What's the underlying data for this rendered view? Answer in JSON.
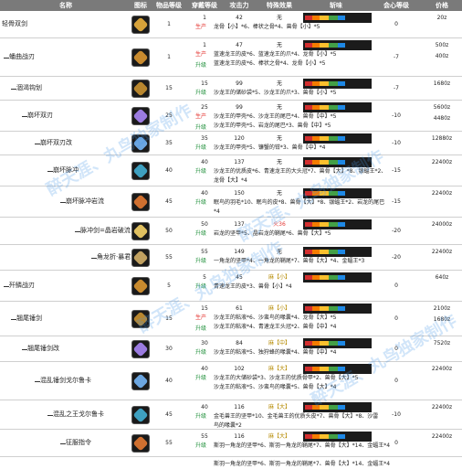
{
  "columns": [
    "名称",
    "图标",
    "物品等级",
    "穿戴等级",
    "攻击力",
    "特殊效果",
    "斩味",
    "会心等级",
    "价格"
  ],
  "watermarks": [
    "醉天涯、丸鸟独家制作",
    "醉天涯、丸鸟独家制作",
    "醉天涯、丸鸟独家制作",
    "醉天涯、丸鸟独家制作"
  ],
  "rows": [
    {
      "name": "轻骨双剑",
      "level": 0,
      "item_level": "1",
      "wear": "1",
      "atk": "42",
      "effect": "无",
      "materials": [
        "龙骨【小】*6、棒状之骨*4、兽骨【小】*5"
      ],
      "tag": "生产",
      "tag2": "",
      "crit": "0",
      "price": "20z",
      "price2": ""
    },
    {
      "name": "蟠曲战刃",
      "level": 1,
      "item_level": "1",
      "wear": "1",
      "atk": "47",
      "effect": "无",
      "materials": [
        "蓝速龙王的皮*6、蓝速龙王的爪*4、龙骨【小】*5",
        "蓝速龙王的皮*6、棒状之骨*4、龙骨【小】*5"
      ],
      "tag": "生产",
      "tag2": "升级",
      "crit": "-7",
      "price": "500z",
      "price2": "400z"
    },
    {
      "name": "涸渴钩划",
      "level": 2,
      "item_level": "15",
      "wear": "15",
      "atk": "99",
      "effect": "无",
      "materials": [
        "沙龙王的储砂袋*5、沙龙王的爪*3、兽骨【小】*5"
      ],
      "tag": "升级",
      "tag2": "",
      "crit": "-7",
      "price": "1680z",
      "price2": ""
    },
    {
      "name": "崩坏双刃",
      "level": 3,
      "item_level": "25",
      "wear": "25",
      "atk": "99",
      "effect": "无",
      "materials": [
        "沙龙王的甲壳*6、沙龙王的尾巴*4、兽骨【中】*5",
        "沙龙王的甲壳*5、岩龙的尾巴*3、兽骨【中】*5"
      ],
      "tag": "生产",
      "tag2": "升级",
      "crit": "-10",
      "price": "5600z",
      "price2": "4480z"
    },
    {
      "name": "崩坏双刃改",
      "level": 4,
      "item_level": "35",
      "wear": "35",
      "atk": "120",
      "effect": "无",
      "materials": [
        "沙龙王的甲壳*5、镰蟹的钳*3、兽骨【中】*4"
      ],
      "tag": "升级",
      "tag2": "",
      "crit": "-10",
      "price": "12880z",
      "price2": ""
    },
    {
      "name": "崩坏脉冲",
      "level": 5,
      "item_level": "40",
      "wear": "40",
      "atk": "137",
      "effect": "无",
      "materials": [
        "沙龙王的优质皮*6、青速龙王的大头冠*7、兽骨【大】*8、银蝠王*2、",
        "龙骨【大】*4"
      ],
      "tag": "升级",
      "tag2": "",
      "crit": "-15",
      "price": "22400z",
      "price2": ""
    },
    {
      "name": "崩坏脉冲岩流",
      "level": 6,
      "item_level": "45",
      "wear": "40",
      "atk": "150",
      "effect": "无",
      "materials": [
        "眠鸟的羽毛*10、眠鸟的皮*8、兽骨【大】*8、银蝠王*2、岩龙的尾巴",
        "*4"
      ],
      "tag": "升级",
      "tag2": "",
      "crit": "-15",
      "price": "22400z",
      "price2": ""
    },
    {
      "name": "脉冲剑=晶岩破流",
      "level": 7,
      "item_level": "50",
      "wear": "50",
      "atk": "137",
      "effect": "火36",
      "materials": [
        "岩龙的坚甲*5、晶岩龙的鞘尾*6、兽骨【大】*5"
      ],
      "tag": "升级",
      "tag2": "",
      "crit": "-20",
      "price": "24000z",
      "price2": ""
    },
    {
      "name": "角龙折·暴君",
      "level": 8,
      "item_level": "55",
      "wear": "55",
      "atk": "149",
      "effect": "无",
      "materials": [
        "一角龙的坚甲*4、一角龙的鞘尾*7、兽骨【大】*4、金蝠王*3"
      ],
      "tag": "升级",
      "tag2": "",
      "crit": "-20",
      "price": "22400z",
      "price2": ""
    },
    {
      "name": "歼鳞战刃",
      "level": 1,
      "item_level": "5",
      "wear": "5",
      "atk": "45",
      "effect": "麻【小】",
      "materials": [
        "青速龙王的皮*3、兽骨【小】*4"
      ],
      "tag": "升级",
      "tag2": "",
      "crit": "0",
      "price": "640z",
      "price2": ""
    },
    {
      "name": "翘尾锤剑",
      "level": 2,
      "item_level": "15",
      "wear": "15",
      "atk": "61",
      "effect": "麻【小】",
      "materials": [
        "沙龙王的粘液*6、沙蛮鸟的喙囊*4、龙骨【大】*5",
        "沙龙王的粘液*4、青速龙王头冠*2、兽骨【中】*4"
      ],
      "tag": "生产",
      "tag2": "升级",
      "crit": "0",
      "price": "2100z",
      "price2": "1680z"
    },
    {
      "name": "翘尾锤剑改",
      "level": 3,
      "item_level": "30",
      "wear": "30",
      "atk": "84",
      "effect": "麻【中】",
      "materials": [
        "沙龙王的粘液*5、独狩蜂的喙囊*4、兽骨【中】*4"
      ],
      "tag": "升级",
      "tag2": "",
      "crit": "0",
      "price": "7520z",
      "price2": ""
    },
    {
      "name": "混乱锤剑戈尔鲁卡",
      "level": 4,
      "item_level": "40",
      "wear": "40",
      "atk": "102",
      "effect": "麻【大】",
      "materials": [
        "沙龙王的大储砂袋*3、沙龙王的优质骨甲*2、兽骨【大】*5",
        "沙龙王的粘液*5、沙蛮鸟的喙囊*5、兽骨【大】*4"
      ],
      "tag": "升级",
      "tag2": "",
      "crit": "0",
      "price": "22400z",
      "price2": ""
    },
    {
      "name": "混乱之王戈尔鲁卡",
      "level": 5,
      "item_level": "45",
      "wear": "40",
      "atk": "116",
      "effect": "麻【大】",
      "materials": [
        "金毛兽王的坚甲*10、金毛兽王的优质头皮*7、兽骨【大】*8、沙雷",
        "鸟的喙囊*2"
      ],
      "tag": "升级",
      "tag2": "",
      "crit": "-10",
      "price": "22400z",
      "price2": ""
    },
    {
      "name": "征服指令",
      "level": 6,
      "item_level": "55",
      "wear": "55",
      "atk": "116",
      "effect": "麻【大】",
      "materials": [
        "斯羽一角龙的坚甲*6、斯羽一角龙的鞘尾*7、兽骨【大】*14、金蝠王*4",
        "",
        "斯羽一角龙的坚甲*6、斯羽一角龙的鞘尾*7、兽骨【大】*14、金蝠王*4"
      ],
      "tag": "升级",
      "tag2": "",
      "crit": "0",
      "price": "22400z",
      "price2": ""
    }
  ],
  "colors": {
    "header": "#7a7a7a",
    "produce": "#e53935",
    "upgrade": "#1f8f3a",
    "sharpness_bg": "#1b1b1b",
    "watermark": "#4696e6"
  }
}
